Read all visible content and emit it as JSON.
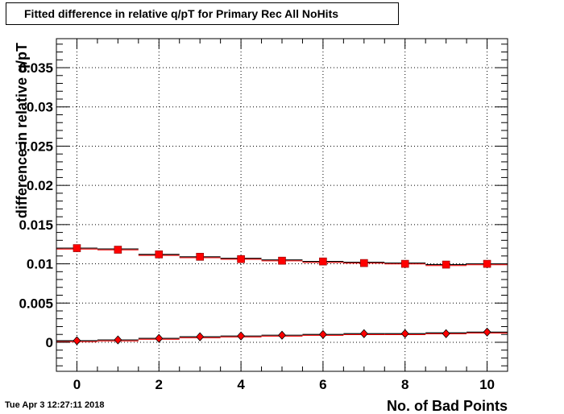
{
  "chart_data": {
    "type": "scatter",
    "title": "Fitted difference in relative q/pT for Primary Rec All NoHits",
    "xlabel": "No. of Bad Points",
    "ylabel": "difference in relative q/pT",
    "xlim": [
      -0.5,
      10.5
    ],
    "ylim": [
      -0.0037,
      0.0387
    ],
    "x_ticks": [
      0,
      2,
      4,
      6,
      8,
      10
    ],
    "y_ticks": [
      0,
      0.005,
      0.01,
      0.015,
      0.02,
      0.025,
      0.03,
      0.035
    ],
    "y_tick_labels": [
      "0",
      "0.005",
      "0.01",
      "0.015",
      "0.02",
      "0.025",
      "0.03",
      "0.035"
    ],
    "grid": true,
    "series": [
      {
        "marker": "square",
        "color": "#ff0000",
        "x": [
          0,
          1,
          2,
          3,
          4,
          5,
          6,
          7,
          8,
          9,
          10
        ],
        "values": [
          0.012,
          0.0118,
          0.0112,
          0.0109,
          0.0106,
          0.0104,
          0.0103,
          0.0101,
          0.01,
          0.0099,
          0.01
        ],
        "fit_levels": [
          0.012,
          0.0119,
          0.0112,
          0.0109,
          0.0107,
          0.0105,
          0.0103,
          0.0102,
          0.0101,
          0.0099,
          0.01
        ]
      },
      {
        "marker": "diamond",
        "color": "#ff0000",
        "x": [
          0,
          1,
          2,
          3,
          4,
          5,
          6,
          7,
          8,
          9,
          10
        ],
        "values": [
          0.0002,
          0.0003,
          0.0005,
          0.0007,
          0.0008,
          0.0009,
          0.001,
          0.0011,
          0.0011,
          0.0011,
          0.0013
        ],
        "fit_levels": [
          0.0002,
          0.0003,
          0.0005,
          0.0007,
          0.0008,
          0.0009,
          0.001,
          0.0011,
          0.0011,
          0.0012,
          0.0013
        ]
      }
    ]
  },
  "timestamp": "Tue Apr  3 12:27:11 2018"
}
